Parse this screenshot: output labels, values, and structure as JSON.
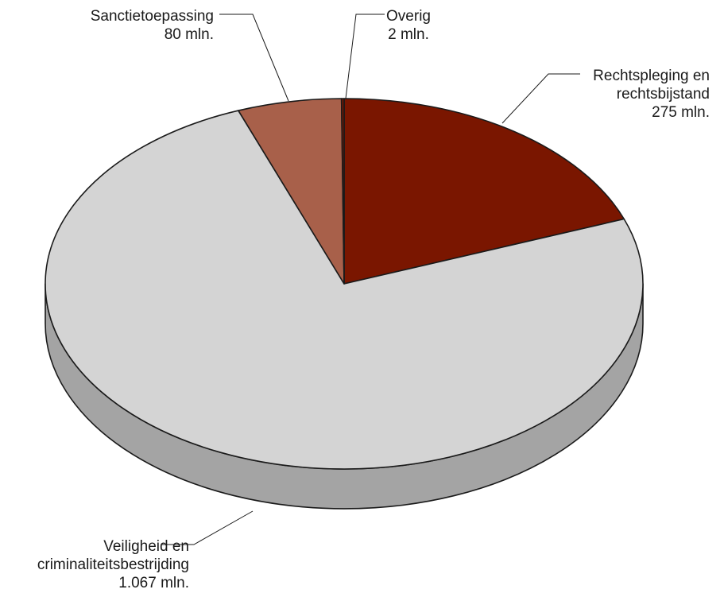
{
  "chart_data": {
    "type": "pie",
    "title": "",
    "unit": "mln.",
    "slices": [
      {
        "name": "Rechtspleging en rechtsbijstand",
        "lines": [
          "Rechtspleging en",
          "rechtsbijstand"
        ],
        "value_label": "275 mln.",
        "value": 275,
        "color": "#7a1600",
        "side_color": "#5a1000"
      },
      {
        "name": "Veiligheid en criminaliteitsbestrijding",
        "lines": [
          "Veiligheid en",
          "criminaliteitsbestrijding"
        ],
        "value_label": "1.067 mln.",
        "value": 1067,
        "color": "#d4d4d4",
        "side_color": "#a4a4a4"
      },
      {
        "name": "Sanctietoepassing",
        "lines": [
          "Sanctietoepassing"
        ],
        "value_label": "80 mln.",
        "value": 80,
        "color": "#a8604a",
        "side_color": "#7e4535"
      },
      {
        "name": "Overig",
        "lines": [
          "Overig"
        ],
        "value_label": "2 mln.",
        "value": 2,
        "color": "#7a1600",
        "side_color": "#5a1000"
      }
    ]
  }
}
